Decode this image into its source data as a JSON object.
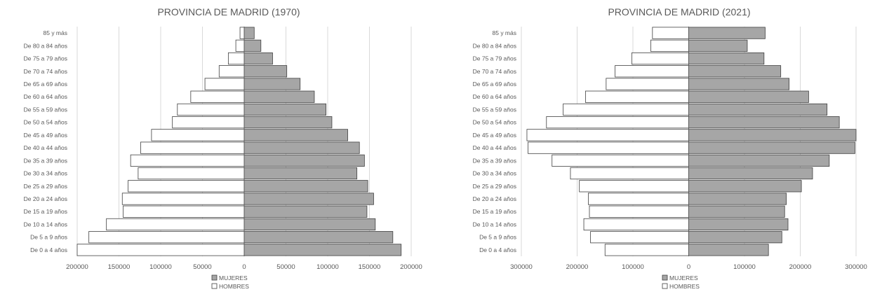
{
  "chart_data": [
    {
      "type": "bar",
      "orientation": "horizontal-population-pyramid",
      "title": "PROVINCIA DE MADRID (1970)",
      "categories": [
        "85 y más",
        "De 80 a 84 años",
        "De 75 a 79 años",
        "De 70 a 74 años",
        "De 65 a 69 años",
        "De 60 a 64 años",
        "De 55 a 59 años",
        "De 50 a 54 años",
        "De 45 a 49 años",
        "De 40 a 44 años",
        "De 35 a 39 años",
        "De 30 a 34 años",
        "De 25 a 29 años",
        "De 20 a 24 años",
        "De 15 a 19 años",
        "De 10 a 14 años",
        "De 5 a 9 años",
        "De 0 a 4 años"
      ],
      "series": [
        {
          "name": "MUJERES",
          "color": "#a6a6a6",
          "side": "right",
          "values": [
            12000,
            20000,
            34000,
            51000,
            67000,
            84000,
            98000,
            105000,
            124000,
            138000,
            144000,
            135000,
            148000,
            155000,
            147000,
            157000,
            178000,
            188000
          ]
        },
        {
          "name": "HOMBRES",
          "color": "#ffffff",
          "side": "left",
          "values": [
            5000,
            10000,
            19000,
            30000,
            47000,
            64000,
            80000,
            86000,
            111000,
            124000,
            136000,
            127000,
            139000,
            146000,
            145000,
            165000,
            186000,
            200000
          ]
        }
      ],
      "xlim": [
        -200000,
        200000
      ],
      "xticks": [
        -200000,
        -150000,
        -100000,
        -50000,
        0,
        50000,
        100000,
        150000,
        200000
      ],
      "xtick_labels": [
        "200000",
        "150000",
        "100000",
        "50000",
        "0",
        "50000",
        "100000",
        "150000",
        "200000"
      ],
      "grid": true,
      "legend_position": "bottom"
    },
    {
      "type": "bar",
      "orientation": "horizontal-population-pyramid",
      "title": "PROVINCIA DE MADRID (2021)",
      "categories": [
        "85 y más",
        "De 80 a 84 años",
        "De 75 a 79 años",
        "De 70 a 74 años",
        "De 65 a 69 años",
        "De 60 a 64 años",
        "De 55 a 59 años",
        "De 50 a 54 años",
        "De 45 a 49 años",
        "De 40 a 44 años",
        "De 35 a 39 años",
        "De 30 a 34 años",
        "De 25 a 29 años",
        "De 20 a 24 años",
        "De 15 a 19 años",
        "De 10 a 14 años",
        "De 5 a 9 años",
        "De 0 a 4 años"
      ],
      "series": [
        {
          "name": "MUJERES",
          "color": "#a6a6a6",
          "side": "right",
          "values": [
            137000,
            105000,
            135000,
            165000,
            180000,
            215000,
            248000,
            270000,
            300000,
            298000,
            252000,
            222000,
            202000,
            175000,
            172000,
            178000,
            167000,
            143000
          ]
        },
        {
          "name": "HOMBRES",
          "color": "#ffffff",
          "side": "left",
          "values": [
            65000,
            68000,
            102000,
            132000,
            148000,
            185000,
            225000,
            255000,
            290000,
            288000,
            245000,
            212000,
            196000,
            180000,
            178000,
            188000,
            176000,
            150000
          ]
        }
      ],
      "xlim": [
        -300000,
        300000
      ],
      "xticks": [
        -300000,
        -200000,
        -100000,
        0,
        100000,
        200000,
        300000
      ],
      "xtick_labels": [
        "300000",
        "200000",
        "100000",
        "0",
        "100000",
        "200000",
        "300000"
      ],
      "grid": true,
      "legend_position": "bottom"
    }
  ]
}
